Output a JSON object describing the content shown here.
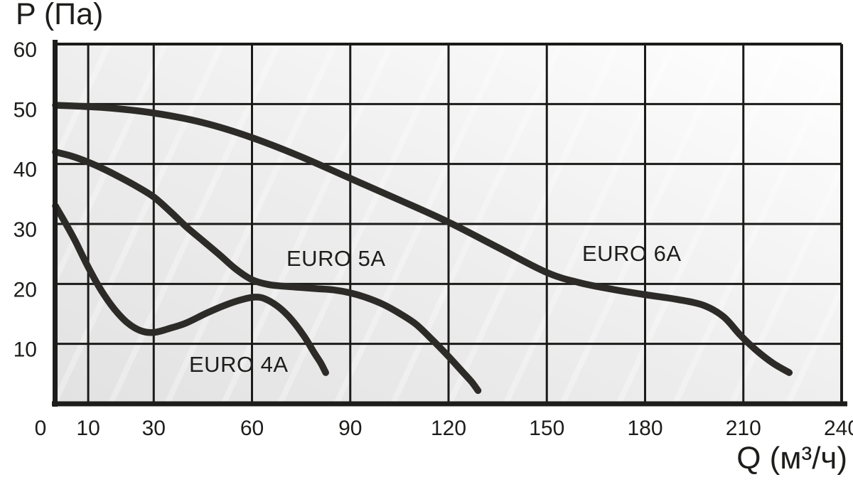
{
  "chart_data": {
    "type": "line",
    "title": "",
    "xlabel": "Q (м³/ч)",
    "ylabel": "P (Па)",
    "xlim": [
      0,
      240
    ],
    "ylim": [
      0,
      60
    ],
    "x_ticks": [
      0,
      10,
      30,
      60,
      90,
      120,
      150,
      180,
      210,
      240
    ],
    "y_ticks": [
      10,
      20,
      30,
      40,
      50,
      60
    ],
    "grid": true,
    "legend_position": "inline-labels",
    "colors": {
      "curve": "#2d2b28",
      "grid": "#1b1b19",
      "axis": "#1d1d1b",
      "text": "#1d1d1b",
      "plot_bg_from": "#e2e2e2",
      "plot_bg_to": "#ffffff"
    },
    "series": [
      {
        "name": "EURO 4A",
        "points": [
          [
            0,
            33
          ],
          [
            3,
            30.2
          ],
          [
            6,
            27.2
          ],
          [
            10,
            22.8
          ],
          [
            14,
            18.9
          ],
          [
            18,
            15.8
          ],
          [
            22,
            13.5
          ],
          [
            26,
            12.2
          ],
          [
            30,
            11.9
          ],
          [
            35,
            12.6
          ],
          [
            40,
            13.5
          ],
          [
            46,
            15.1
          ],
          [
            52,
            16.5
          ],
          [
            57,
            17.4
          ],
          [
            61,
            17.8
          ],
          [
            64,
            17.5
          ],
          [
            68,
            16.2
          ],
          [
            72,
            14.1
          ],
          [
            76,
            11.2
          ],
          [
            79,
            8.5
          ],
          [
            81,
            6.8
          ],
          [
            82.5,
            5.2
          ]
        ]
      },
      {
        "name": "EURO 5A",
        "points": [
          [
            0,
            42
          ],
          [
            5,
            41.3
          ],
          [
            10,
            40.3
          ],
          [
            15,
            39.1
          ],
          [
            20,
            37.7
          ],
          [
            25,
            36.2
          ],
          [
            30,
            34.5
          ],
          [
            35,
            32.1
          ],
          [
            40,
            29.5
          ],
          [
            45,
            27.2
          ],
          [
            50,
            24.9
          ],
          [
            55,
            22.5
          ],
          [
            60,
            20.7
          ],
          [
            65,
            19.9
          ],
          [
            70,
            19.6
          ],
          [
            75,
            19.4
          ],
          [
            80,
            19.2
          ],
          [
            85,
            19
          ],
          [
            90,
            18.5
          ],
          [
            95,
            17.7
          ],
          [
            100,
            16.6
          ],
          [
            105,
            15.1
          ],
          [
            110,
            13.3
          ],
          [
            115,
            10.7
          ],
          [
            120,
            7.9
          ],
          [
            124,
            5.5
          ],
          [
            127,
            3.7
          ],
          [
            129,
            2.2
          ]
        ]
      },
      {
        "name": "EURO 6A",
        "points": [
          [
            0,
            49.8
          ],
          [
            15,
            49.4
          ],
          [
            30,
            48.5
          ],
          [
            45,
            46.9
          ],
          [
            60,
            44.4
          ],
          [
            75,
            41.2
          ],
          [
            90,
            37.6
          ],
          [
            105,
            34
          ],
          [
            120,
            30.3
          ],
          [
            135,
            26.1
          ],
          [
            150,
            21.9
          ],
          [
            160,
            20.2
          ],
          [
            170,
            19.1
          ],
          [
            180,
            18.2
          ],
          [
            190,
            17.4
          ],
          [
            198,
            16.4
          ],
          [
            204,
            14.5
          ],
          [
            209,
            11.5
          ],
          [
            214,
            8.9
          ],
          [
            219,
            6.8
          ],
          [
            224,
            5.2
          ]
        ]
      }
    ]
  }
}
